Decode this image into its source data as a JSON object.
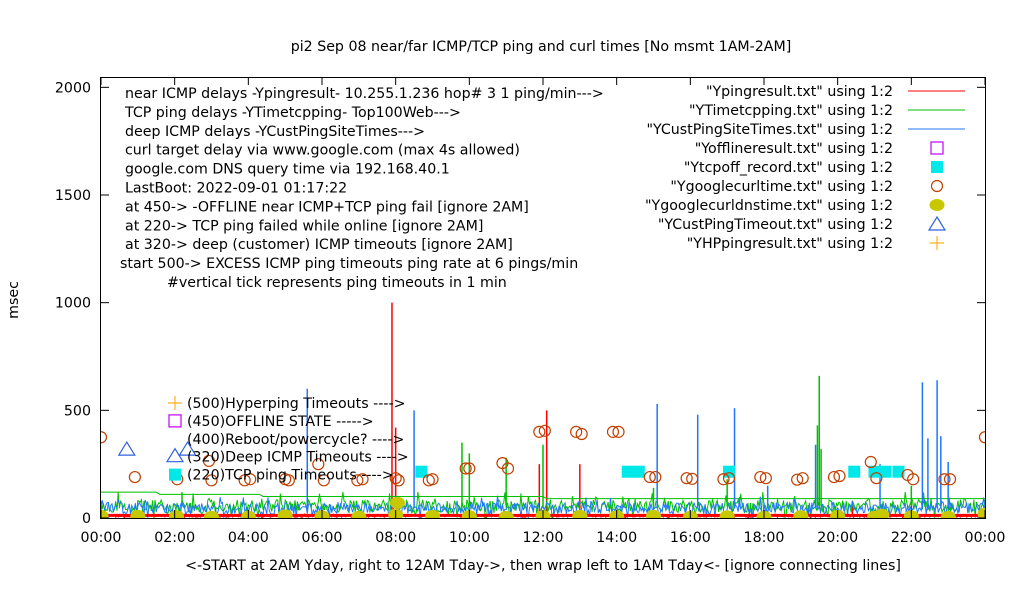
{
  "chart_data": {
    "type": "line",
    "title": "pi2 Sep 08  near/far ICMP/TCP ping and curl times [No msmt 1AM-2AM]",
    "xlabel": "<-START at 2AM Yday, right to 12AM Tday->, then wrap left to 1AM Tday<- [ignore connecting lines]",
    "ylabel": "msec",
    "xlim_hours": [
      0,
      24
    ],
    "ylim": [
      0,
      2048
    ],
    "x_ticks": [
      "00:00",
      "02:00",
      "04:00",
      "06:00",
      "08:00",
      "10:00",
      "12:00",
      "14:00",
      "16:00",
      "18:00",
      "20:00",
      "22:00",
      "00:00"
    ],
    "y_ticks": [
      "0",
      "500",
      "1000",
      "1500",
      "2000"
    ],
    "y_tick_values": [
      0,
      500,
      1000,
      1500,
      2000
    ],
    "notes": [
      "near ICMP delays -Ypingresult- 10.255.1.236 hop# 3 1 ping/min--->",
      "TCP ping delays -YTimetcpping- Top100Web--->",
      "deep ICMP delays -YCustPingSiteTimes--->",
      "curl target delay via www.google.com (max 4s allowed)",
      "google.com DNS query time via 192.168.40.1",
      "LastBoot: 2022-09-01 01:17:22",
      "at 450-> -OFFLINE near ICMP+TCP ping fail [ignore 2AM]",
      "at 220-> TCP ping failed while online [ignore 2AM]",
      "at 320-> deep (customer) ICMP timeouts [ignore 2AM]",
      "start 500-> EXCESS ICMP ping timeouts ping rate at 6 pings/min",
      "#vertical tick represents ping timeouts in 1 min"
    ],
    "level_keys": [
      {
        "label": "(500)Hyperping Timeouts ---->",
        "marker": "plus",
        "color": "#ffb020"
      },
      {
        "label": "(450)OFFLINE STATE ----->",
        "marker": "square-open",
        "color": "#c000ff"
      },
      {
        "label": "(400)Reboot/powercycle? ---->",
        "marker": "none",
        "color": "#000000"
      },
      {
        "label": "(320)Deep ICMP Timeouts ---->",
        "marker": "triangle",
        "color": "#3060e0"
      },
      {
        "label": "(220)TCP ping Timeouts ---->",
        "marker": "square-filled",
        "color": "#00e8e8"
      }
    ],
    "legend_position": "top-right",
    "series": [
      {
        "name": "\"Ypingresult.txt\" using 1:2",
        "kind": "line",
        "color": "#ff0000",
        "base": 8,
        "noise": 10,
        "seed": 3,
        "spikes": [
          [
            7.9,
            1000
          ],
          [
            8.0,
            420
          ],
          [
            11.9,
            250
          ],
          [
            12.1,
            500
          ],
          [
            13.0,
            250
          ],
          [
            19.2,
            60
          ],
          [
            20.4,
            80
          ],
          [
            22.0,
            90
          ]
        ]
      },
      {
        "name": "\"YTimetcpping.txt\" using 1:2",
        "kind": "line",
        "color": "#00c000",
        "base": 55,
        "noise": 60,
        "seed": 7,
        "spikes": [
          [
            2.2,
            120
          ],
          [
            9.8,
            350
          ],
          [
            10.0,
            300
          ],
          [
            11.0,
            280
          ],
          [
            12.0,
            340
          ],
          [
            15.0,
            140
          ],
          [
            17.0,
            180
          ],
          [
            19.45,
            430
          ],
          [
            19.5,
            660
          ],
          [
            19.55,
            320
          ],
          [
            22.0,
            150
          ]
        ],
        "envelope": [
          [
            0,
            120
          ],
          [
            1.5,
            120
          ],
          [
            1.6,
            110
          ],
          [
            4.3,
            110
          ],
          [
            4.4,
            100
          ],
          [
            12.0,
            100
          ],
          [
            12.1,
            90
          ],
          [
            24,
            90
          ]
        ]
      },
      {
        "name": "\"YCustPingSiteTimes.txt\" using 1:2",
        "kind": "line",
        "color": "#1e78ff",
        "base": 45,
        "noise": 55,
        "seed": 11,
        "spikes": [
          [
            5.6,
            600
          ],
          [
            8.5,
            500
          ],
          [
            15.1,
            530
          ],
          [
            16.2,
            480
          ],
          [
            17.2,
            510
          ],
          [
            18.1,
            150
          ],
          [
            19.4,
            340
          ],
          [
            21.15,
            250
          ],
          [
            22.3,
            630
          ],
          [
            22.45,
            370
          ],
          [
            22.7,
            640
          ],
          [
            22.8,
            380
          ],
          [
            23.0,
            260
          ]
        ]
      },
      {
        "name": "\"Yofflineresult.txt\" using 1:2",
        "kind": "square-open",
        "color": "#c000ff",
        "points": []
      },
      {
        "name": "\"Ytcpoff_record.txt\" using 1:2",
        "kind": "square-filled",
        "color": "#00e8e8",
        "points": [
          [
            8.7,
            215
          ],
          [
            14.3,
            215
          ],
          [
            14.6,
            215
          ],
          [
            17.05,
            215
          ],
          [
            20.45,
            215
          ],
          [
            21.0,
            215
          ],
          [
            21.3,
            215
          ],
          [
            21.65,
            215
          ]
        ]
      },
      {
        "name": "\"Ygooglecurltime.txt\" using 1:2",
        "kind": "circle-open",
        "color": "#c04000",
        "points": [
          [
            0,
            375
          ],
          [
            0.92,
            190
          ],
          [
            2.07,
            180
          ],
          [
            2.93,
            265
          ],
          [
            3.0,
            175
          ],
          [
            3.9,
            175
          ],
          [
            4.05,
            180
          ],
          [
            5.0,
            180
          ],
          [
            5.1,
            175
          ],
          [
            5.9,
            250
          ],
          [
            6.05,
            175
          ],
          [
            6.96,
            175
          ],
          [
            7.1,
            180
          ],
          [
            8.0,
            185
          ],
          [
            8.08,
            175
          ],
          [
            8.9,
            175
          ],
          [
            9.0,
            180
          ],
          [
            9.9,
            230
          ],
          [
            10.0,
            230
          ],
          [
            10.9,
            255
          ],
          [
            11.05,
            230
          ],
          [
            11.9,
            400
          ],
          [
            12.05,
            405
          ],
          [
            12.9,
            400
          ],
          [
            13.05,
            390
          ],
          [
            13.9,
            400
          ],
          [
            14.05,
            400
          ],
          [
            14.9,
            190
          ],
          [
            15.05,
            190
          ],
          [
            15.9,
            185
          ],
          [
            16.05,
            182
          ],
          [
            16.9,
            180
          ],
          [
            17.05,
            185
          ],
          [
            17.9,
            190
          ],
          [
            18.05,
            185
          ],
          [
            18.9,
            178
          ],
          [
            19.05,
            185
          ],
          [
            19.9,
            190
          ],
          [
            20.05,
            195
          ],
          [
            20.9,
            260
          ],
          [
            21.05,
            185
          ],
          [
            21.9,
            200
          ],
          [
            22.05,
            180
          ],
          [
            22.9,
            180
          ],
          [
            23.05,
            180
          ],
          [
            24,
            375
          ]
        ]
      },
      {
        "name": "\"Ygooglecurldnstime.txt\" using 1:2",
        "kind": "circle-filled",
        "color": "#c8c800",
        "points": [
          [
            0,
            10
          ],
          [
            1,
            10
          ],
          [
            2.05,
            8
          ],
          [
            3,
            5
          ],
          [
            4,
            5
          ],
          [
            5,
            12
          ],
          [
            6,
            8
          ],
          [
            7,
            5
          ],
          [
            8.05,
            70
          ],
          [
            8,
            15
          ],
          [
            9,
            10
          ],
          [
            10,
            8
          ],
          [
            11,
            5
          ],
          [
            12,
            8
          ],
          [
            13,
            10
          ],
          [
            14,
            8
          ],
          [
            15,
            10
          ],
          [
            16,
            5
          ],
          [
            17,
            8
          ],
          [
            18,
            5
          ],
          [
            19,
            8
          ],
          [
            20,
            10
          ],
          [
            21,
            5
          ],
          [
            21.2,
            15
          ],
          [
            22,
            8
          ],
          [
            23,
            5
          ],
          [
            24,
            20
          ]
        ]
      },
      {
        "name": "\"YCustPingTimeout.txt\" using 1:2",
        "kind": "triangle",
        "color": "#3060e0",
        "points": [
          [
            0.7,
            320
          ],
          [
            2.35,
            320
          ]
        ]
      },
      {
        "name": "\"YHPpingresult.txt\" using 1:2",
        "kind": "plus",
        "color": "#ffb020",
        "points": []
      }
    ]
  }
}
